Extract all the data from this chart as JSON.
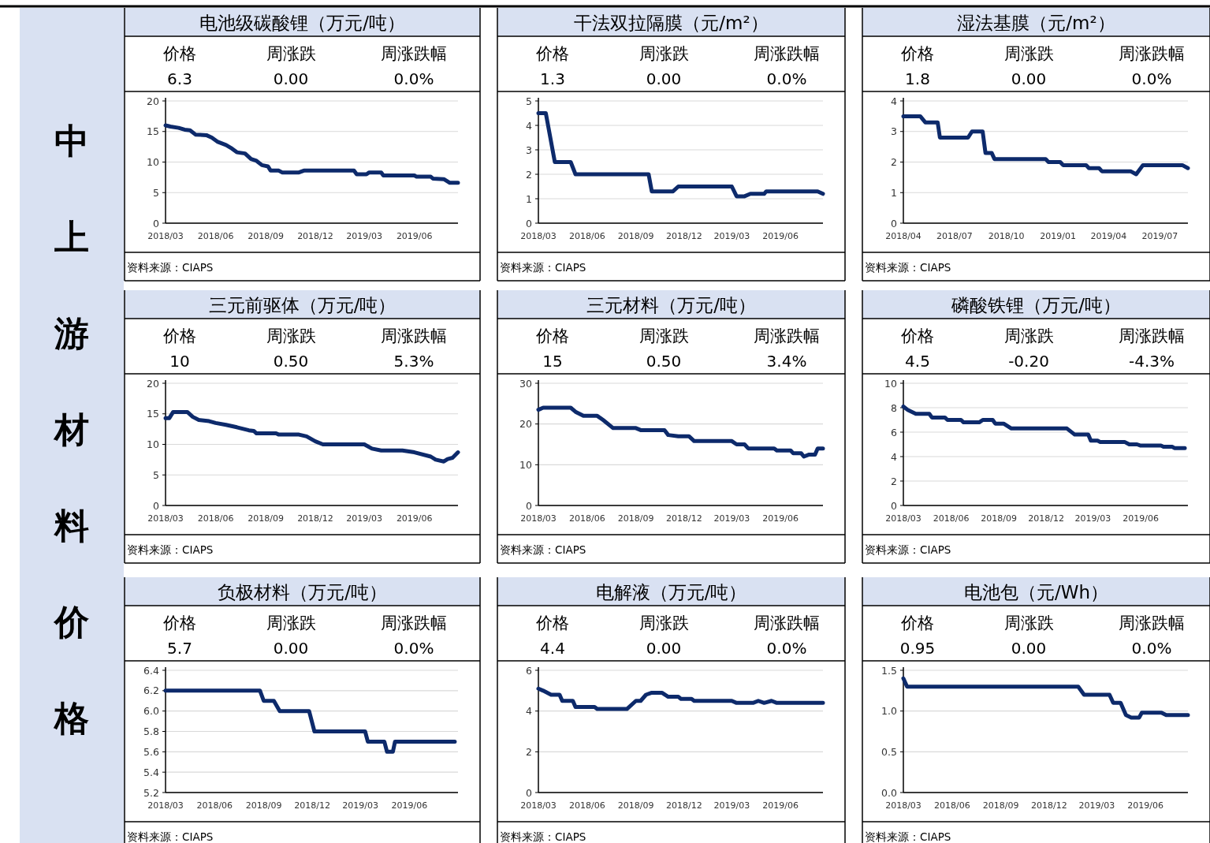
{
  "chart_data": [
    {
      "type": "other",
      "title": "中上游材料价格"
    },
    {
      "type": "line",
      "title": "电池级碳酸锂（万元/吨）",
      "annotations": [
        "价格",
        "周涨跌",
        "周涨跌幅",
        "6.3",
        "0.00",
        "0.0%",
        "资料来源：CIAPS"
      ],
      "color": "#0d2a6b",
      "grid": "y",
      "marker": "none",
      "line_style": "solid",
      "xlim": [
        "2018-03-01",
        "2019-08-20"
      ],
      "xticks": [
        {
          "value": "2018-03",
          "label": "2018/03"
        },
        {
          "value": "2018-06",
          "label": "2018/06"
        },
        {
          "value": "2018-09",
          "label": "2018/09"
        },
        {
          "value": "2018-12",
          "label": "2018/12"
        },
        {
          "value": "2019-03",
          "label": "2019/03"
        },
        {
          "value": "2019-06",
          "label": "2019/06"
        }
      ],
      "ylim": [
        0,
        20
      ],
      "yticks": [
        0,
        5,
        10,
        15,
        20
      ],
      "x": [
        "2018-03-01",
        "2018-03-10",
        "2018-03-25",
        "2018-04-05",
        "2018-04-15",
        "2018-04-25",
        "2018-05-15",
        "2018-05-25",
        "2018-06-05",
        "2018-06-20",
        "2018-07-01",
        "2018-07-10",
        "2018-07-25",
        "2018-08-05",
        "2018-08-15",
        "2018-08-25",
        "2018-09-05",
        "2018-09-10",
        "2018-09-25",
        "2018-10-01",
        "2018-11-01",
        "2018-11-10",
        "2019-02-10",
        "2019-02-15",
        "2019-03-05",
        "2019-03-10",
        "2019-04-01",
        "2019-04-05",
        "2019-06-01",
        "2019-06-05",
        "2019-07-01",
        "2019-07-05",
        "2019-07-25",
        "2019-08-05",
        "2019-08-20"
      ],
      "values": [
        16,
        15.8,
        15.6,
        15.3,
        15.2,
        14.5,
        14.4,
        14,
        13.3,
        12.8,
        12.2,
        11.6,
        11.4,
        10.5,
        10.2,
        9.5,
        9.3,
        8.6,
        8.6,
        8.3,
        8.3,
        8.6,
        8.6,
        8.0,
        8.0,
        8.3,
        8.3,
        7.8,
        7.8,
        7.6,
        7.6,
        7.3,
        7.2,
        6.6,
        6.6
      ]
    },
    {
      "type": "line",
      "title": "干法双拉隔膜（元/m²）",
      "annotations": [
        "价格",
        "周涨跌",
        "周涨跌幅",
        "1.3",
        "0.00",
        "0.0%",
        "资料来源：CIAPS"
      ],
      "color": "#0d2a6b",
      "grid": "y",
      "marker": "none",
      "line_style": "solid",
      "xlim": [
        "2018-03-01",
        "2019-08-20"
      ],
      "xticks": [
        {
          "value": "2018-03",
          "label": "2018/03"
        },
        {
          "value": "2018-06",
          "label": "2018/06"
        },
        {
          "value": "2018-09",
          "label": "2018/09"
        },
        {
          "value": "2018-12",
          "label": "2018/12"
        },
        {
          "value": "2019-03",
          "label": "2019/03"
        },
        {
          "value": "2019-06",
          "label": "2019/06"
        }
      ],
      "ylim": [
        0,
        5
      ],
      "yticks": [
        0,
        1,
        2,
        3,
        4,
        5
      ],
      "x": [
        "2018-03-01",
        "2018-03-15",
        "2018-04-01",
        "2018-05-01",
        "2018-05-10",
        "2018-09-25",
        "2018-10-01",
        "2018-11-10",
        "2018-11-20",
        "2019-03-01",
        "2019-03-10",
        "2019-03-25",
        "2019-04-05",
        "2019-05-01",
        "2019-05-05",
        "2019-08-10",
        "2019-08-20"
      ],
      "values": [
        4.5,
        4.5,
        2.5,
        2.5,
        2.0,
        2.0,
        1.3,
        1.3,
        1.5,
        1.5,
        1.1,
        1.1,
        1.2,
        1.2,
        1.3,
        1.3,
        1.2
      ]
    },
    {
      "type": "line",
      "title": "湿法基膜（元/m²）",
      "annotations": [
        "价格",
        "周涨跌",
        "周涨跌幅",
        "1.8",
        "0.00",
        "0.0%",
        "资料来源：CIAPS"
      ],
      "color": "#0d2a6b",
      "grid": "y",
      "marker": "none",
      "line_style": "solid",
      "xlim": [
        "2018-04-01",
        "2019-08-20"
      ],
      "xticks": [
        {
          "value": "2018-04",
          "label": "2018/04"
        },
        {
          "value": "2018-07",
          "label": "2018/07"
        },
        {
          "value": "2018-10",
          "label": "2018/10"
        },
        {
          "value": "2019-01",
          "label": "2019/01"
        },
        {
          "value": "2019-04",
          "label": "2019/04"
        },
        {
          "value": "2019-07",
          "label": "2019/07"
        }
      ],
      "ylim": [
        0,
        4
      ],
      "yticks": [
        0,
        1,
        2,
        3,
        4
      ],
      "x": [
        "2018-04-01",
        "2018-05-01",
        "2018-05-10",
        "2018-06-01",
        "2018-06-05",
        "2018-07-25",
        "2018-08-01",
        "2018-08-20",
        "2018-08-25",
        "2018-09-05",
        "2018-09-10",
        "2018-12-10",
        "2018-12-15",
        "2019-01-05",
        "2019-01-10",
        "2019-02-20",
        "2019-02-25",
        "2019-03-15",
        "2019-03-20",
        "2019-05-10",
        "2019-05-20",
        "2019-06-01",
        "2019-08-10",
        "2019-08-20"
      ],
      "values": [
        3.5,
        3.5,
        3.3,
        3.3,
        2.8,
        2.8,
        3.0,
        3.0,
        2.3,
        2.3,
        2.1,
        2.1,
        2.0,
        2.0,
        1.9,
        1.9,
        1.8,
        1.8,
        1.7,
        1.7,
        1.6,
        1.9,
        1.9,
        1.8
      ]
    },
    {
      "type": "line",
      "title": "三元前驱体（万元/吨）",
      "annotations": [
        "价格",
        "周涨跌",
        "周涨跌幅",
        "10",
        "0.50",
        "5.3%",
        "资料来源：CIAPS"
      ],
      "color": "#0d2a6b",
      "grid": "y",
      "marker": "none",
      "line_style": "solid",
      "xlim": [
        "2018-03-01",
        "2019-08-20"
      ],
      "xticks": [
        {
          "value": "2018-03",
          "label": "2018/03"
        },
        {
          "value": "2018-06",
          "label": "2018/06"
        },
        {
          "value": "2018-09",
          "label": "2018/09"
        },
        {
          "value": "2018-12",
          "label": "2018/12"
        },
        {
          "value": "2019-03",
          "label": "2019/03"
        },
        {
          "value": "2019-06",
          "label": "2019/06"
        }
      ],
      "ylim": [
        0,
        20
      ],
      "yticks": [
        0,
        5,
        10,
        15,
        20
      ],
      "x": [
        "2018-03-01",
        "2018-03-08",
        "2018-03-15",
        "2018-04-10",
        "2018-04-20",
        "2018-05-01",
        "2018-05-20",
        "2018-06-01",
        "2018-06-20",
        "2018-07-10",
        "2018-08-01",
        "2018-08-10",
        "2018-08-15",
        "2018-09-20",
        "2018-09-25",
        "2018-11-01",
        "2018-11-15",
        "2018-12-01",
        "2018-12-15",
        "2019-03-01",
        "2019-03-15",
        "2019-04-01",
        "2019-05-10",
        "2019-06-01",
        "2019-07-01",
        "2019-07-10",
        "2019-07-25",
        "2019-08-01",
        "2019-08-10",
        "2019-08-20"
      ],
      "values": [
        14.3,
        14.3,
        15.3,
        15.3,
        14.5,
        14.0,
        13.8,
        13.5,
        13.2,
        12.8,
        12.3,
        12.2,
        11.8,
        11.8,
        11.6,
        11.6,
        11.3,
        10.5,
        10.0,
        10.0,
        9.3,
        9.0,
        9.0,
        8.7,
        8.0,
        7.5,
        7.2,
        7.6,
        7.8,
        8.7
      ]
    },
    {
      "type": "line",
      "title": "三元材料（万元/吨）",
      "annotations": [
        "价格",
        "周涨跌",
        "周涨跌幅",
        "15",
        "0.50",
        "3.4%",
        "资料来源：CIAPS"
      ],
      "color": "#0d2a6b",
      "grid": "y",
      "marker": "none",
      "line_style": "solid",
      "xlim": [
        "2018-03-01",
        "2019-08-20"
      ],
      "xticks": [
        {
          "value": "2018-03",
          "label": "2018/03"
        },
        {
          "value": "2018-06",
          "label": "2018/06"
        },
        {
          "value": "2018-09",
          "label": "2018/09"
        },
        {
          "value": "2018-12",
          "label": "2018/12"
        },
        {
          "value": "2019-03",
          "label": "2019/03"
        },
        {
          "value": "2019-06",
          "label": "2019/06"
        }
      ],
      "ylim": [
        0,
        30
      ],
      "yticks": [
        0,
        10,
        20,
        30
      ],
      "x": [
        "2018-03-01",
        "2018-03-10",
        "2018-05-01",
        "2018-05-10",
        "2018-05-25",
        "2018-06-20",
        "2018-07-01",
        "2018-07-20",
        "2018-09-01",
        "2018-09-10",
        "2018-10-25",
        "2018-11-01",
        "2018-11-20",
        "2018-12-10",
        "2018-12-20",
        "2019-03-01",
        "2019-03-10",
        "2019-03-25",
        "2019-04-01",
        "2019-05-20",
        "2019-05-25",
        "2019-06-20",
        "2019-06-25",
        "2019-07-10",
        "2019-07-15",
        "2019-07-25",
        "2019-08-05",
        "2019-08-10",
        "2019-08-20"
      ],
      "values": [
        23.5,
        24.0,
        24.0,
        23.0,
        22.0,
        22.0,
        21.0,
        19.0,
        19.0,
        18.5,
        18.5,
        17.3,
        17.0,
        17.0,
        15.8,
        15.8,
        15.0,
        15.0,
        14.0,
        14.0,
        13.5,
        13.5,
        12.8,
        12.8,
        12.0,
        12.5,
        12.5,
        14.0,
        14.0
      ]
    },
    {
      "type": "line",
      "title": "磷酸铁锂（万元/吨）",
      "annotations": [
        "价格",
        "周涨跌",
        "周涨跌幅",
        "4.5",
        "-0.20",
        "-4.3%",
        "资料来源：CIAPS"
      ],
      "color": "#0d2a6b",
      "grid": "y",
      "marker": "none",
      "line_style": "solid",
      "xlim": [
        "2018-03-01",
        "2019-08-31"
      ],
      "xticks": [
        {
          "value": "2018-03",
          "label": "2018/03"
        },
        {
          "value": "2018-06",
          "label": "2018/06"
        },
        {
          "value": "2018-09",
          "label": "2018/09"
        },
        {
          "value": "2018-12",
          "label": "2018/12"
        },
        {
          "value": "2019-03",
          "label": "2019/03"
        },
        {
          "value": "2019-06",
          "label": "2019/06"
        }
      ],
      "ylim": [
        0,
        10
      ],
      "yticks": [
        0,
        2,
        4,
        6,
        8,
        10
      ],
      "x": [
        "2018-03-01",
        "2018-03-10",
        "2018-03-25",
        "2018-04-20",
        "2018-04-25",
        "2018-05-20",
        "2018-05-25",
        "2018-06-20",
        "2018-06-25",
        "2018-07-25",
        "2018-08-01",
        "2018-08-20",
        "2018-08-25",
        "2018-09-10",
        "2018-09-25",
        "2019-01-10",
        "2019-01-25",
        "2019-02-20",
        "2019-02-25",
        "2019-03-10",
        "2019-03-15",
        "2019-05-01",
        "2019-05-10",
        "2019-05-25",
        "2019-06-01",
        "2019-07-10",
        "2019-07-15",
        "2019-08-01",
        "2019-08-05",
        "2019-08-25"
      ],
      "values": [
        8.1,
        7.8,
        7.5,
        7.5,
        7.2,
        7.2,
        7.0,
        7.0,
        6.8,
        6.8,
        7.0,
        7.0,
        6.7,
        6.7,
        6.3,
        6.3,
        5.8,
        5.8,
        5.3,
        5.3,
        5.2,
        5.2,
        5.0,
        5.0,
        4.9,
        4.9,
        4.8,
        4.8,
        4.7,
        4.7
      ]
    },
    {
      "type": "line",
      "title": "负极材料（万元/吨）",
      "annotations": [
        "价格",
        "周涨跌",
        "周涨跌幅",
        "5.7",
        "0.00",
        "0.0%",
        "资料来源：CIAPS"
      ],
      "color": "#0d2a6b",
      "grid": "y",
      "marker": "none",
      "line_style": "solid",
      "xlim": [
        "2018-03-01",
        "2019-08-31"
      ],
      "xticks": [
        {
          "value": "2018-03",
          "label": "2018/03"
        },
        {
          "value": "2018-06",
          "label": "2018/06"
        },
        {
          "value": "2018-09",
          "label": "2018/09"
        },
        {
          "value": "2018-12",
          "label": "2018/12"
        },
        {
          "value": "2019-03",
          "label": "2019/03"
        },
        {
          "value": "2019-06",
          "label": "2019/06"
        }
      ],
      "ylim": [
        5.2,
        6.4
      ],
      "yticks": [
        5.2,
        5.4,
        5.6,
        5.8,
        {
          "value": 6.0,
          "label": "6.0"
        },
        6.2,
        6.4
      ],
      "x": [
        "2018-03-01",
        "2018-08-25",
        "2018-09-01",
        "2018-09-20",
        "2018-10-01",
        "2018-11-25",
        "2018-12-05",
        "2019-03-10",
        "2019-03-15",
        "2019-04-15",
        "2019-04-20",
        "2019-05-01",
        "2019-05-05",
        "2019-08-25"
      ],
      "values": [
        6.2,
        6.2,
        6.1,
        6.1,
        6.0,
        6.0,
        5.8,
        5.8,
        5.7,
        5.7,
        5.6,
        5.6,
        5.7,
        5.7
      ]
    },
    {
      "type": "line",
      "title": "电解液（万元/吨）",
      "annotations": [
        "价格",
        "周涨跌",
        "周涨跌幅",
        "4.4",
        "0.00",
        "0.0%",
        "资料来源：CIAPS"
      ],
      "color": "#0d2a6b",
      "grid": "y",
      "marker": "none",
      "line_style": "solid",
      "xlim": [
        "2018-03-01",
        "2019-08-20"
      ],
      "xticks": [
        {
          "value": "2018-03",
          "label": "2018/03"
        },
        {
          "value": "2018-06",
          "label": "2018/06"
        },
        {
          "value": "2018-09",
          "label": "2018/09"
        },
        {
          "value": "2018-12",
          "label": "2018/12"
        },
        {
          "value": "2019-03",
          "label": "2019/03"
        },
        {
          "value": "2019-06",
          "label": "2019/06"
        }
      ],
      "ylim": [
        0,
        6
      ],
      "yticks": [
        0,
        2,
        4,
        6
      ],
      "x": [
        "2018-03-01",
        "2018-03-10",
        "2018-03-25",
        "2018-04-10",
        "2018-04-15",
        "2018-05-05",
        "2018-05-10",
        "2018-06-15",
        "2018-06-20",
        "2018-08-15",
        "2018-09-01",
        "2018-09-10",
        "2018-09-20",
        "2018-10-01",
        "2018-10-20",
        "2018-11-01",
        "2018-11-20",
        "2018-11-25",
        "2018-12-15",
        "2018-12-20",
        "2019-03-01",
        "2019-03-10",
        "2019-04-10",
        "2019-04-20",
        "2019-05-01",
        "2019-05-15",
        "2019-05-25",
        "2019-08-20"
      ],
      "values": [
        5.1,
        5.0,
        4.8,
        4.8,
        4.5,
        4.5,
        4.2,
        4.2,
        4.1,
        4.1,
        4.5,
        4.5,
        4.8,
        4.9,
        4.9,
        4.7,
        4.7,
        4.6,
        4.6,
        4.5,
        4.5,
        4.4,
        4.4,
        4.5,
        4.4,
        4.5,
        4.4,
        4.4
      ]
    },
    {
      "type": "line",
      "title": "电池包（元/Wh）",
      "annotations": [
        "价格",
        "周涨跌",
        "周涨跌幅",
        "0.95",
        "0.00",
        "0.0%",
        "资料来源：CIAPS"
      ],
      "color": "#0d2a6b",
      "grid": "y",
      "marker": "none",
      "line_style": "solid",
      "xlim": [
        "2018-03-01",
        "2019-08-20"
      ],
      "xticks": [
        {
          "value": "2018-03",
          "label": "2018/03"
        },
        {
          "value": "2018-06",
          "label": "2018/06"
        },
        {
          "value": "2018-09",
          "label": "2018/09"
        },
        {
          "value": "2018-12",
          "label": "2018/12"
        },
        {
          "value": "2019-03",
          "label": "2019/03"
        },
        {
          "value": "2019-06",
          "label": "2019/06"
        }
      ],
      "ylim": [
        0,
        1.5
      ],
      "yticks": [
        {
          "value": 0,
          "label": "0.0"
        },
        0.5,
        {
          "value": 1,
          "label": "1.0"
        },
        1.5
      ],
      "x": [
        "2018-03-01",
        "2018-03-08",
        "2019-01-25",
        "2019-02-05",
        "2019-03-25",
        "2019-04-01",
        "2019-04-15",
        "2019-04-25",
        "2019-05-05",
        "2019-05-20",
        "2019-05-25",
        "2019-07-01",
        "2019-07-10",
        "2019-08-20"
      ],
      "values": [
        1.4,
        1.3,
        1.3,
        1.2,
        1.2,
        1.1,
        1.1,
        0.95,
        0.92,
        0.92,
        0.98,
        0.98,
        0.95,
        0.95
      ]
    }
  ]
}
